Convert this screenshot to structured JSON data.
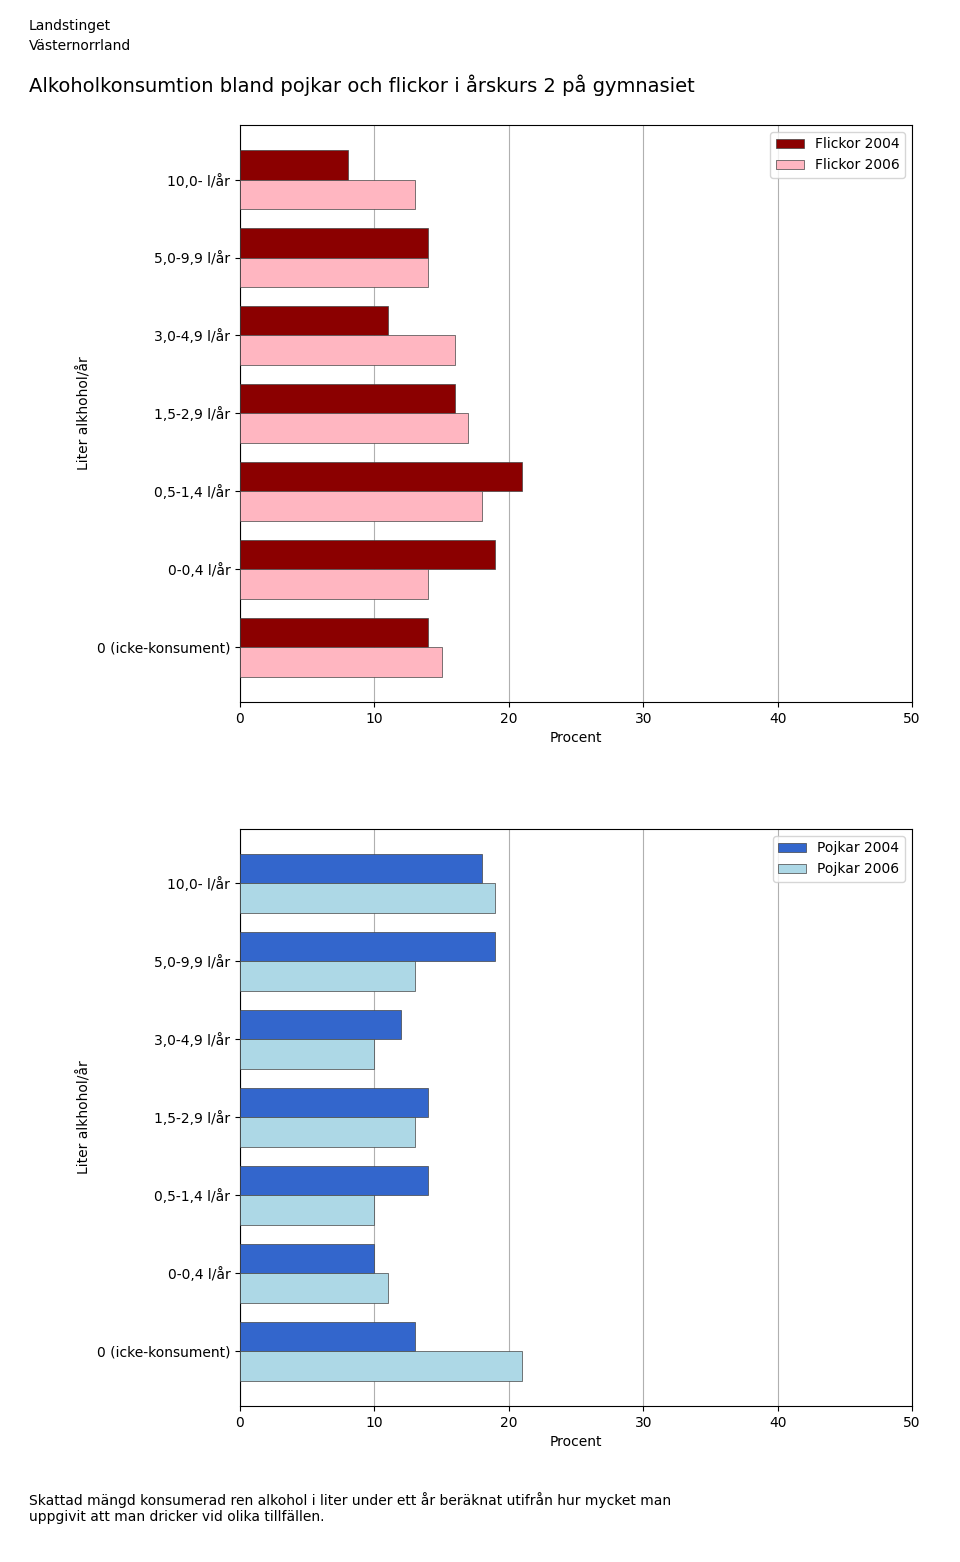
{
  "title": "Alkoholkonsumtion bland pojkar och flickor i årskurs 2 på gymnasiet",
  "annotations": [
    "Landstinget",
    "Västernorrland",
    "Skattad mängd konsumerad ren alkohol i liter under ett år beräknat utifrån hur mycket man\nuppgivit att man dricker vid olika tillfällen."
  ],
  "chart_data": [
    {
      "type": "bar",
      "orientation": "horizontal",
      "categories": [
        "0 (icke-konsument)",
        "0-0,4 l/år",
        "0,5-1,4 l/år",
        "1,5-2,9 l/år",
        "3,0-4,9 l/år",
        "5,0-9,9 l/år",
        "10,0- l/år"
      ],
      "series": [
        {
          "name": "Flickor 2004",
          "color": "#8B0000",
          "values": [
            14,
            19,
            21,
            16,
            11,
            14,
            8
          ]
        },
        {
          "name": "Flickor 2006",
          "color": "#FFB6C1",
          "values": [
            15,
            14,
            18,
            17,
            16,
            14,
            13
          ]
        }
      ],
      "xlabel": "Procent",
      "ylabel": "Liter alkhohol/år",
      "xlim": [
        0,
        50
      ],
      "xticks": [
        0,
        10,
        20,
        30,
        40,
        50
      ],
      "grid": true,
      "legend": "upper right"
    },
    {
      "type": "bar",
      "orientation": "horizontal",
      "categories": [
        "0 (icke-konsument)",
        "0-0,4 l/år",
        "0,5-1,4 l/år",
        "1,5-2,9 l/år",
        "3,0-4,9 l/år",
        "5,0-9,9 l/år",
        "10,0- l/år"
      ],
      "series": [
        {
          "name": "Pojkar 2004",
          "color": "#3366CC",
          "values": [
            13,
            10,
            14,
            14,
            12,
            19,
            18
          ]
        },
        {
          "name": "Pojkar 2006",
          "color": "#ADD8E6",
          "values": [
            21,
            11,
            10,
            13,
            10,
            13,
            19
          ]
        }
      ],
      "xlabel": "Procent",
      "ylabel": "Liter alkhohol/år",
      "xlim": [
        0,
        50
      ],
      "xticks": [
        0,
        10,
        20,
        30,
        40,
        50
      ],
      "grid": true,
      "legend": "upper right"
    }
  ]
}
